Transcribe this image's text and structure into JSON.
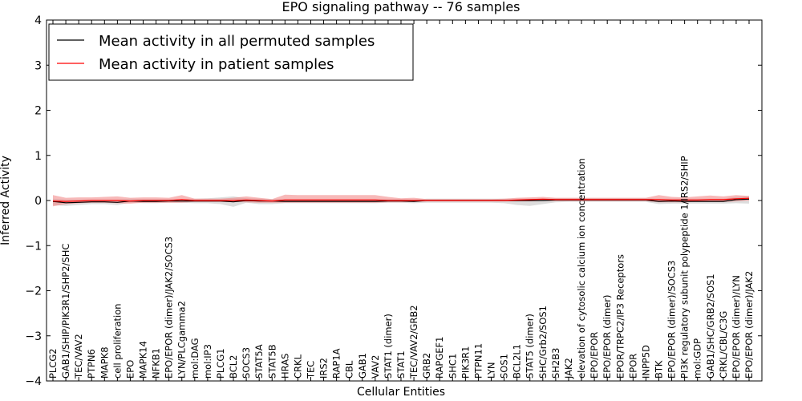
{
  "chart_data": {
    "type": "line",
    "title": "EPO signaling pathway -- 76 samples",
    "xlabel": "Cellular Entities",
    "ylabel": "Inferred Activity",
    "ylim": [
      -4,
      4
    ],
    "yticks": [
      "−4",
      "−3",
      "−2",
      "−1",
      "0",
      "1",
      "2",
      "3",
      "4"
    ],
    "yticks_values": [
      -4,
      -3,
      -2,
      -1,
      0,
      1,
      2,
      3,
      4
    ],
    "legend_position": "top-left",
    "categories": [
      "PLCG2",
      "GAB1/SHIP/PIK3R1/SHP2/SHC",
      "TEC/VAV2",
      "PTPN6",
      "MAPK8",
      "cell proliferation",
      "EPO",
      "MAPK14",
      "NFKB1",
      "EPO/EPOR (dimer)/JAK2/SOCS3",
      "LYN/PLCgamma2",
      "mol:DAG",
      "mol:IP3",
      "PLCG1",
      "BCL2",
      "SOCS3",
      "STAT5A",
      "STAT5B",
      "HRAS",
      "CRKL",
      "TEC",
      "IRS2",
      "RAP1A",
      "CBL",
      "GAB1",
      "VAV2",
      "STAT1 (dimer)",
      "STAT1",
      "TEC/VAV2/GRB2",
      "GRB2",
      "RAPGEF1",
      "SHC1",
      "PIK3R1",
      "PTPN11",
      "LYN",
      "SOS1",
      "BCL2L1",
      "STAT5 (dimer)",
      "SHC/Grb2/SOS1",
      "SH2B3",
      "JAK2",
      "elevation of cytosolic calcium ion concentration",
      "EPO/EPOR",
      "EPO/EPOR (dimer)",
      "EPOR/TRPC2/IP3 Receptors",
      "EPOR",
      "INPP5D",
      "BTK",
      "EPO/EPOR (dimer)/SOCS3",
      "PI3K regulatory subunit polypeptide 1/IRS2/SHIP",
      "mol:GDP",
      "GAB1/SHC/GRB2/SOS1",
      "CRKL/CBL/C3G",
      "EPO/EPOR (dimer)/LYN",
      "EPO/EPOR (dimer)/JAK2"
    ],
    "series": [
      {
        "name": "Mean activity in all permuted samples",
        "color": "#000000",
        "values": [
          -0.02,
          -0.05,
          -0.04,
          -0.03,
          -0.03,
          -0.04,
          -0.01,
          -0.02,
          -0.02,
          -0.01,
          -0.01,
          -0.01,
          -0.01,
          -0.01,
          -0.03,
          0.0,
          -0.01,
          -0.01,
          -0.02,
          -0.02,
          -0.02,
          -0.02,
          -0.02,
          -0.02,
          -0.02,
          -0.02,
          -0.01,
          -0.01,
          -0.02,
          0.0,
          0.0,
          0.0,
          0.0,
          0.0,
          0.0,
          0.0,
          0.0,
          0.0,
          0.0,
          0.01,
          0.01,
          0.01,
          0.01,
          0.01,
          0.01,
          0.01,
          0.01,
          -0.02,
          -0.01,
          -0.02,
          -0.02,
          -0.02,
          -0.02,
          0.02,
          0.03
        ],
        "band_low": [
          -0.1,
          -0.12,
          -0.1,
          -0.08,
          -0.08,
          -0.1,
          -0.05,
          -0.06,
          -0.06,
          -0.05,
          -0.05,
          -0.06,
          -0.06,
          -0.08,
          -0.14,
          -0.05,
          -0.08,
          -0.08,
          -0.06,
          -0.06,
          -0.06,
          -0.06,
          -0.06,
          -0.06,
          -0.06,
          -0.06,
          -0.05,
          -0.05,
          -0.06,
          -0.05,
          -0.05,
          -0.05,
          -0.05,
          -0.05,
          -0.05,
          -0.06,
          -0.1,
          -0.12,
          -0.08,
          -0.04,
          -0.03,
          -0.03,
          -0.03,
          -0.03,
          -0.03,
          -0.03,
          -0.03,
          -0.08,
          -0.07,
          -0.07,
          -0.07,
          -0.07,
          -0.07,
          -0.06,
          -0.07
        ],
        "band_high": [
          0.04,
          0.02,
          0.02,
          0.02,
          0.02,
          0.02,
          0.04,
          0.03,
          0.03,
          0.03,
          0.03,
          0.04,
          0.05,
          0.07,
          0.09,
          0.05,
          0.04,
          0.03,
          0.03,
          0.03,
          0.03,
          0.03,
          0.03,
          0.03,
          0.03,
          0.03,
          0.03,
          0.03,
          0.02,
          0.04,
          0.04,
          0.04,
          0.04,
          0.04,
          0.04,
          0.04,
          0.04,
          0.04,
          0.04,
          0.05,
          0.05,
          0.05,
          0.05,
          0.05,
          0.05,
          0.05,
          0.05,
          0.04,
          0.04,
          0.04,
          0.04,
          0.04,
          0.04,
          0.08,
          0.1
        ],
        "band_color": "#b3b3b3"
      },
      {
        "name": "Mean activity in patient samples",
        "color": "#ff0000",
        "values": [
          -0.01,
          -0.02,
          -0.01,
          0.0,
          0.0,
          0.0,
          -0.01,
          0.0,
          0.0,
          0.0,
          0.02,
          0.0,
          0.0,
          0.0,
          0.0,
          0.01,
          0.0,
          -0.01,
          0.01,
          0.01,
          0.01,
          0.01,
          0.01,
          0.01,
          0.01,
          0.01,
          0.0,
          0.0,
          0.0,
          0.0,
          0.0,
          0.0,
          0.0,
          0.0,
          0.0,
          0.0,
          0.01,
          0.02,
          0.03,
          0.02,
          0.02,
          0.02,
          0.02,
          0.02,
          0.02,
          0.02,
          0.02,
          0.02,
          0.01,
          0.01,
          0.01,
          0.02,
          0.02,
          0.04,
          0.05
        ],
        "band_low": [
          -0.13,
          -0.08,
          -0.06,
          -0.05,
          -0.05,
          -0.06,
          -0.07,
          -0.05,
          -0.05,
          -0.05,
          -0.05,
          -0.03,
          -0.03,
          -0.03,
          -0.03,
          -0.04,
          -0.05,
          -0.05,
          -0.05,
          -0.05,
          -0.05,
          -0.05,
          -0.05,
          -0.05,
          -0.05,
          -0.05,
          -0.04,
          -0.04,
          -0.03,
          -0.02,
          -0.02,
          -0.02,
          -0.02,
          -0.02,
          -0.02,
          -0.02,
          -0.02,
          -0.02,
          -0.01,
          -0.01,
          -0.01,
          -0.01,
          -0.01,
          -0.01,
          -0.01,
          -0.01,
          -0.01,
          -0.04,
          -0.04,
          -0.04,
          -0.03,
          -0.03,
          -0.03,
          -0.02,
          0.0
        ],
        "band_high": [
          0.12,
          0.06,
          0.07,
          0.07,
          0.08,
          0.09,
          0.06,
          0.07,
          0.07,
          0.06,
          0.12,
          0.04,
          0.04,
          0.04,
          0.06,
          0.09,
          0.06,
          0.03,
          0.13,
          0.12,
          0.12,
          0.12,
          0.12,
          0.12,
          0.12,
          0.12,
          0.08,
          0.05,
          0.06,
          0.03,
          0.03,
          0.03,
          0.03,
          0.03,
          0.03,
          0.04,
          0.06,
          0.07,
          0.08,
          0.06,
          0.06,
          0.06,
          0.06,
          0.06,
          0.06,
          0.06,
          0.06,
          0.12,
          0.08,
          0.07,
          0.09,
          0.11,
          0.09,
          0.12,
          0.1
        ],
        "band_color": "#f08080"
      }
    ]
  }
}
